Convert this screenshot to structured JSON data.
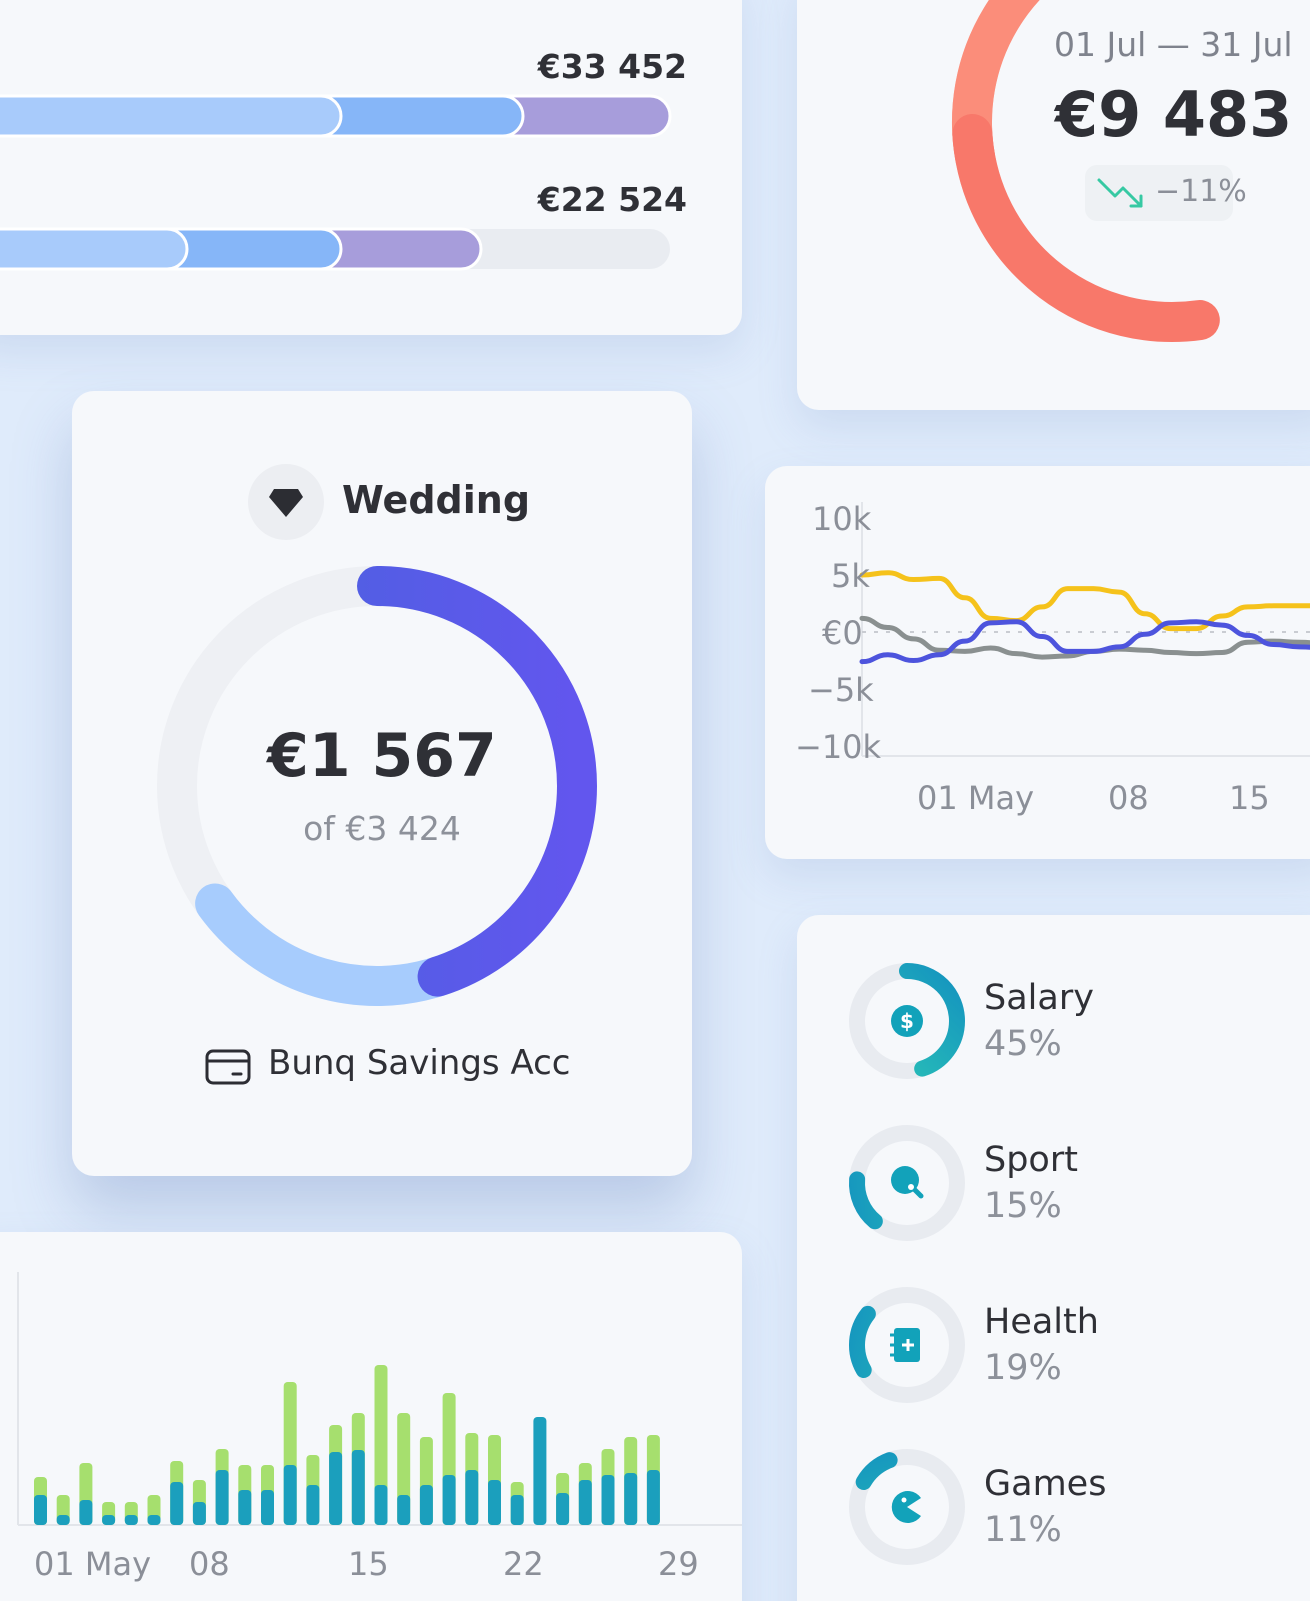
{
  "progress_card": {
    "rows": [
      {
        "amount": "€33 452",
        "segments": [
          0.53,
          0.26,
          0.21
        ],
        "fill": 1.0
      },
      {
        "amount": "€22 524",
        "segments": [
          0.31,
          0.22,
          0.2
        ],
        "fill": 0.73
      }
    ],
    "colors": [
      "#a8cbfb",
      "#86b6f8",
      "#a79ddb"
    ]
  },
  "period_card": {
    "date_range": "01 Jul — 31 Jul",
    "amount": "€9 483",
    "change": "−11%",
    "trend_icon": "trend-down-icon",
    "colors": [
      "#fca898",
      "#fc8b78",
      "#f77766"
    ]
  },
  "goal_card": {
    "icon": "diamond-icon",
    "title": "Wedding",
    "amount": "€1 567",
    "target": "of €3 424",
    "account_icon": "wallet-icon",
    "account": "Bunq Savings Acc",
    "progress": 0.46,
    "colors": {
      "primary": "#4f5ee8",
      "secondary": "#a7ccfd",
      "track": "#eef0f4"
    }
  },
  "categories": [
    {
      "name": "Salary",
      "percent": "45%",
      "icon": "dollar-icon",
      "share": 0.45
    },
    {
      "name": "Sport",
      "percent": "15%",
      "icon": "ping-pong-icon",
      "share": 0.15
    },
    {
      "name": "Health",
      "percent": "19%",
      "icon": "medical-book-icon",
      "share": 0.19
    },
    {
      "name": "Games",
      "percent": "11%",
      "icon": "pacman-icon",
      "share": 0.11
    }
  ],
  "chart_data": [
    {
      "type": "line",
      "y_ticks": [
        "10k",
        "5k",
        "€0",
        "−5k",
        "−10k"
      ],
      "x_ticks": [
        "01 May",
        "08",
        "15"
      ],
      "ylim": [
        -10000,
        10000
      ],
      "x": [
        0,
        1,
        2,
        3,
        4,
        5,
        6,
        7,
        8,
        9,
        10,
        11,
        12,
        13,
        14,
        15,
        16,
        17,
        18
      ],
      "series": [
        {
          "color": "#f5c21b",
          "values": [
            5000,
            5200,
            4600,
            4700,
            3000,
            1200,
            1000,
            2200,
            3800,
            3800,
            3500,
            1600,
            300,
            300,
            1400,
            2200,
            2300,
            2300,
            2300
          ]
        },
        {
          "color": "#8a9090",
          "values": [
            1200,
            400,
            -600,
            -1600,
            -1700,
            -1400,
            -1900,
            -2200,
            -2100,
            -1700,
            -1500,
            -1600,
            -1800,
            -1900,
            -1800,
            -900,
            -800,
            -900,
            -1000
          ]
        },
        {
          "color": "#4d54dd",
          "values": [
            -2600,
            -2000,
            -2500,
            -2000,
            -800,
            800,
            900,
            -400,
            -1700,
            -1700,
            -1300,
            -200,
            800,
            900,
            600,
            -300,
            -1100,
            -1300,
            -1400
          ]
        }
      ],
      "zero_line": "dotted"
    },
    {
      "type": "bar",
      "x_ticks": [
        "01 May",
        "08",
        "15",
        "22",
        "29"
      ],
      "series": [
        {
          "color": "#a6df6e",
          "values": [
            48,
            30,
            62,
            23,
            23,
            30,
            64,
            45,
            76,
            60,
            60,
            143,
            70,
            100,
            112,
            160,
            112,
            88,
            132,
            92,
            90,
            43,
            0,
            52,
            62,
            76,
            88,
            90
          ]
        },
        {
          "color": "#1b9fbd",
          "values": [
            30,
            10,
            25,
            10,
            10,
            10,
            43,
            23,
            55,
            35,
            35,
            60,
            40,
            73,
            75,
            40,
            30,
            40,
            50,
            55,
            45,
            30,
            108,
            32,
            45,
            50,
            52,
            55
          ]
        }
      ],
      "stacked": false
    }
  ]
}
